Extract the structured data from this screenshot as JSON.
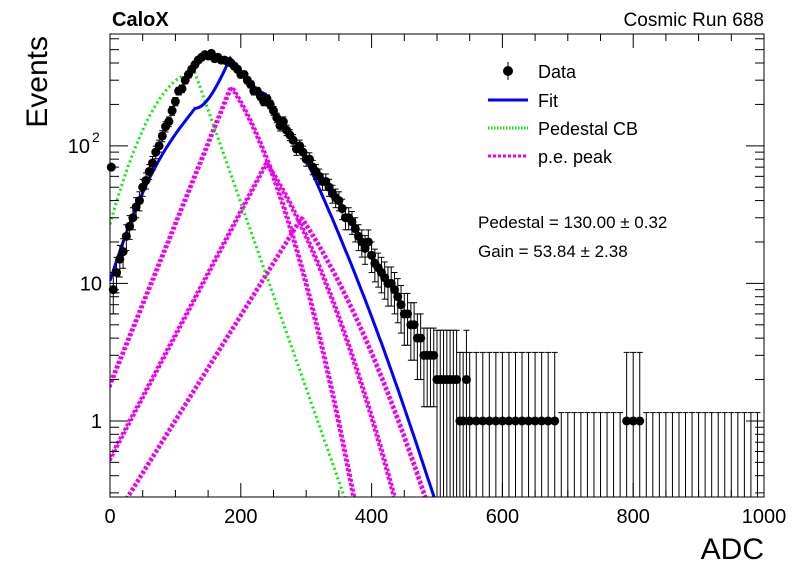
{
  "chart_data": {
    "type": "scatter",
    "title_left": "CaloX",
    "title_right": "Cosmic Run 688",
    "xlabel": "ADC",
    "ylabel": "Events",
    "xlim": [
      0,
      1000
    ],
    "ylim": [
      0.28,
      650
    ],
    "y_scale": "log",
    "x_ticks": [
      "0",
      "200",
      "400",
      "600",
      "800",
      "1000"
    ],
    "y_ticks": [
      {
        "value": 1,
        "label": "1"
      },
      {
        "value": 10,
        "label": "10"
      },
      {
        "value": 100,
        "label": "10",
        "sup": "2"
      }
    ],
    "legend_placement": "top-right",
    "legend": [
      {
        "label": "Data",
        "style": "marker",
        "color": "#000000"
      },
      {
        "label": "Fit",
        "style": "solid",
        "color": "#0000ff"
      },
      {
        "label": "Pedestal CB",
        "style": "dotted",
        "color": "#00ee00"
      },
      {
        "label": "p.e. peak",
        "style": "dotted",
        "color": "#ee00ee"
      }
    ],
    "annotations": [
      "Pedestal = 130.00 ± 0.32",
      "Gain = 53.84 ± 2.38"
    ],
    "fit_params": {
      "pedestal": 130.0,
      "pedestal_err": 0.32,
      "gain": 53.84,
      "gain_err": 2.38
    },
    "data_points": {
      "x": [
        5,
        10,
        15,
        20,
        25,
        30,
        35,
        40,
        45,
        50,
        55,
        60,
        65,
        70,
        75,
        80,
        85,
        90,
        95,
        100,
        105,
        110,
        115,
        120,
        125,
        130,
        135,
        140,
        145,
        150,
        155,
        160,
        165,
        170,
        175,
        180,
        185,
        190,
        195,
        200,
        205,
        210,
        215,
        220,
        225,
        230,
        235,
        240,
        245,
        250,
        255,
        260,
        265,
        270,
        275,
        280,
        285,
        290,
        295,
        300,
        305,
        310,
        315,
        320,
        325,
        330,
        335,
        340,
        345,
        350,
        355,
        360,
        365,
        370,
        375,
        380,
        385,
        390,
        395,
        400,
        405,
        410,
        415,
        420,
        425,
        430,
        435,
        440,
        445,
        450,
        455,
        460,
        465,
        470,
        475,
        480,
        485,
        490,
        495,
        500,
        505,
        510,
        515,
        520,
        525,
        530,
        535,
        540,
        545,
        550,
        560,
        570,
        580,
        590,
        600,
        610,
        620,
        630,
        640,
        650,
        660,
        670,
        680,
        690,
        700,
        710,
        720,
        730,
        740,
        750,
        760,
        770,
        780,
        790,
        800,
        810,
        820,
        830,
        840,
        850,
        860,
        870,
        880,
        890,
        900,
        910,
        920,
        930,
        940,
        950,
        960,
        970,
        980,
        990
      ],
      "y": [
        9,
        12,
        15,
        17,
        22,
        26,
        30,
        36,
        40,
        50,
        56,
        65,
        75,
        90,
        100,
        118,
        138,
        150,
        180,
        210,
        250,
        260,
        300,
        330,
        360,
        390,
        420,
        440,
        460,
        450,
        470,
        430,
        440,
        420,
        420,
        410,
        400,
        380,
        360,
        330,
        330,
        300,
        280,
        250,
        250,
        230,
        210,
        220,
        200,
        180,
        160,
        140,
        150,
        130,
        120,
        110,
        95,
        100,
        90,
        80,
        80,
        70,
        65,
        60,
        55,
        55,
        50,
        45,
        42,
        40,
        35,
        30,
        30,
        28,
        25,
        22,
        20,
        18,
        20,
        16,
        14,
        13,
        12,
        11,
        10,
        10,
        9,
        8,
        7,
        6,
        6,
        5,
        5,
        4,
        4,
        3,
        3,
        3,
        3,
        2,
        2,
        2,
        2,
        2,
        2,
        2,
        1,
        1,
        2,
        1,
        1,
        1,
        1,
        1,
        1,
        1,
        1,
        1,
        1,
        1,
        1,
        1,
        1,
        0,
        0,
        0,
        0,
        0,
        0,
        0,
        0,
        0,
        0,
        1,
        1,
        1,
        0,
        0,
        0,
        0,
        0,
        0,
        0,
        0,
        0,
        0,
        0,
        0,
        0,
        0,
        0,
        0,
        0,
        0
      ]
    },
    "fit_curves": {
      "pedestal_mean": 130,
      "pedestal_sigma": 20,
      "pedestal_amplitude": 340,
      "pe_peaks": [
        {
          "n": 1,
          "amplitude": 270
        },
        {
          "n": 2,
          "amplitude": 75
        },
        {
          "n": 3,
          "amplitude": 30
        }
      ]
    }
  }
}
